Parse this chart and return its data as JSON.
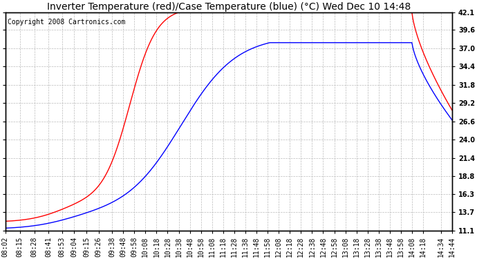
{
  "title": "Inverter Temperature (red)/Case Temperature (blue) (°C) Wed Dec 10 14:48",
  "copyright": "Copyright 2008 Cartronics.com",
  "yticks": [
    11.1,
    13.7,
    16.3,
    18.8,
    21.4,
    24.0,
    26.6,
    29.2,
    31.8,
    34.4,
    37.0,
    39.6,
    42.1
  ],
  "ymin": 11.1,
  "ymax": 42.1,
  "xtick_labels": [
    "08:02",
    "08:15",
    "08:28",
    "08:41",
    "08:53",
    "09:04",
    "09:15",
    "09:26",
    "09:38",
    "09:48",
    "09:58",
    "10:08",
    "10:18",
    "10:28",
    "10:38",
    "10:48",
    "10:58",
    "11:08",
    "11:18",
    "11:28",
    "11:38",
    "11:48",
    "11:58",
    "12:08",
    "12:18",
    "12:28",
    "12:38",
    "12:48",
    "12:58",
    "13:08",
    "13:18",
    "13:28",
    "13:38",
    "13:48",
    "13:58",
    "14:08",
    "14:18",
    "14:34",
    "14:44"
  ],
  "background_color": "#ffffff",
  "plot_bg_color": "#ffffff",
  "grid_color": "#bbbbbb",
  "red_color": "#ff0000",
  "blue_color": "#0000ff",
  "title_fontsize": 10,
  "copyright_fontsize": 7,
  "tick_fontsize": 7
}
